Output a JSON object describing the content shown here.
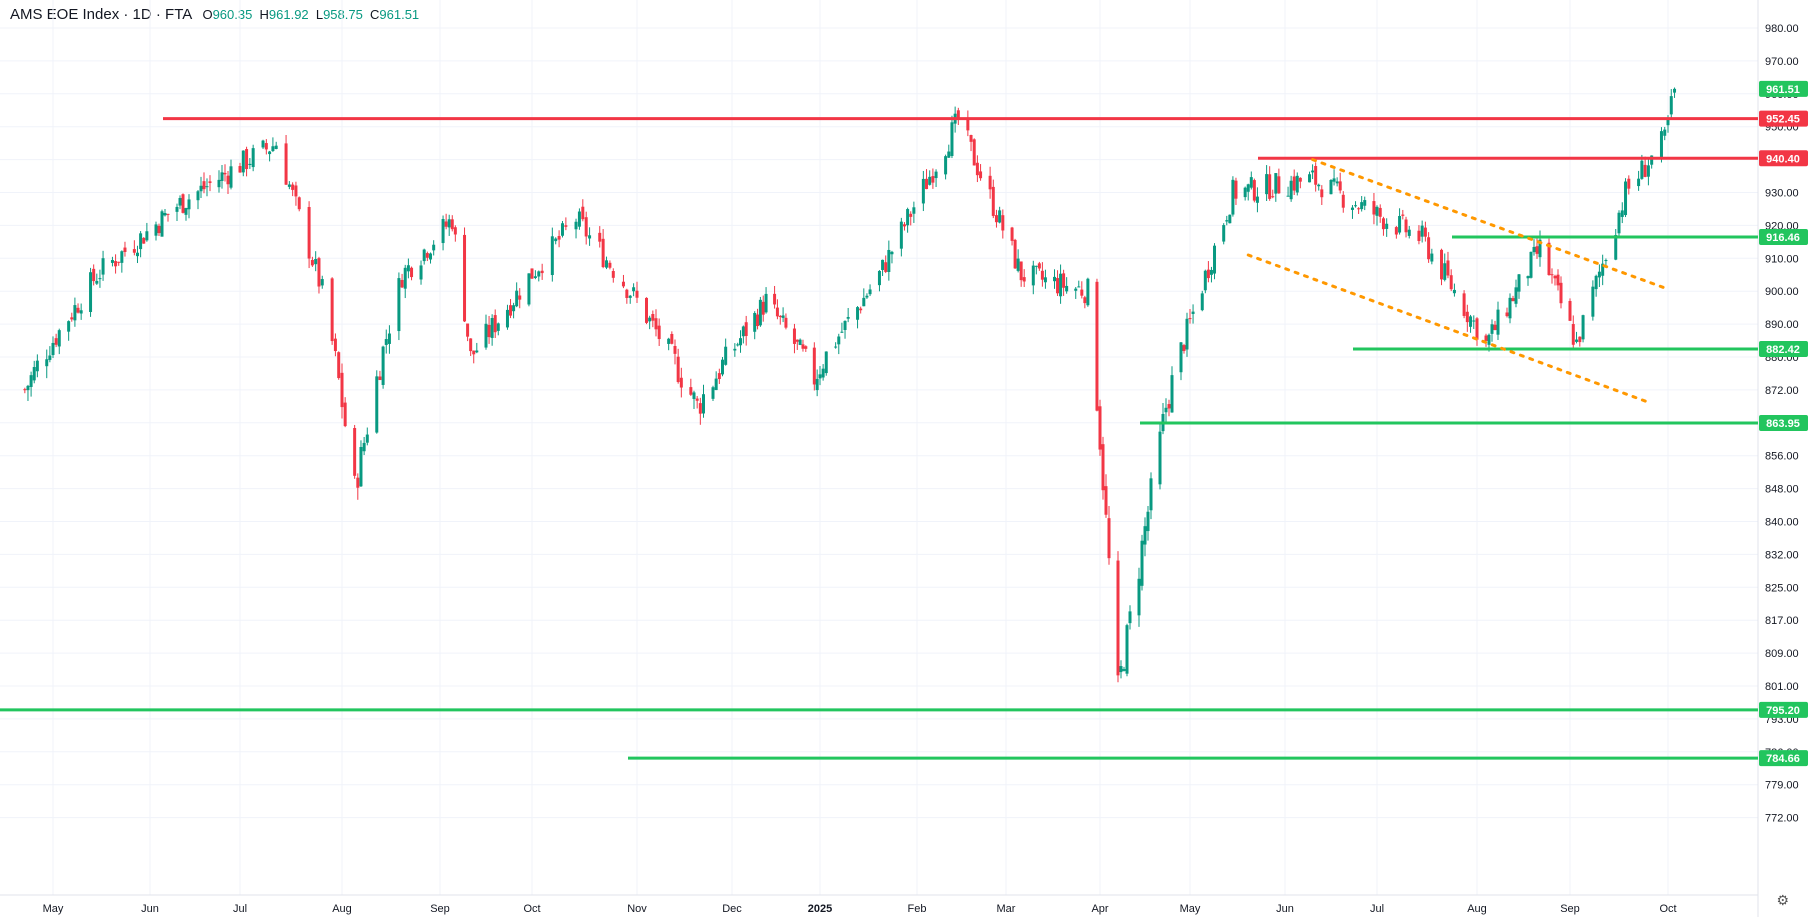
{
  "legend": {
    "symbol": "AMS EOE Index · 1D · FTA",
    "o_label": "O",
    "o_value": "960.35",
    "h_label": "H",
    "h_value": "961.92",
    "l_label": "L",
    "l_value": "958.75",
    "c_label": "C",
    "c_value": "961.51"
  },
  "colors": {
    "up": "#089981",
    "down": "#f23645",
    "resistance": "#f23645",
    "support": "#22c55e",
    "trend": "#ff9800",
    "last": "#22c55e"
  },
  "settings_icon": "gear-icon",
  "chart_data": {
    "type": "candlestick",
    "title": "AMS EOE Index · 1D · FTA",
    "y_tick_labels": [
      "980.00",
      "970.00",
      "960.00",
      "950.00",
      "940.00",
      "930.00",
      "920.00",
      "910.00",
      "900.00",
      "890.00",
      "880.00",
      "872.00",
      "864.00",
      "856.00",
      "848.00",
      "840.00",
      "832.00",
      "825.00",
      "817.00",
      "809.00",
      "801.00",
      "793.00",
      "786.00",
      "779.00",
      "772.00"
    ],
    "x_tick_labels": [
      "May",
      "Jun",
      "Jul",
      "Aug",
      "Sep",
      "Oct",
      "Nov",
      "Dec",
      "2025",
      "Feb",
      "Mar",
      "Apr",
      "May",
      "Jun",
      "Jul",
      "Aug",
      "Sep",
      "Oct"
    ],
    "last_price": "961.51",
    "horizontal_levels": [
      {
        "label": "952.45",
        "value": 952.45,
        "kind": "resistance"
      },
      {
        "label": "940.40",
        "value": 940.4,
        "kind": "resistance"
      },
      {
        "label": "916.46",
        "value": 916.46,
        "kind": "support"
      },
      {
        "label": "882.42",
        "value": 882.42,
        "kind": "support"
      },
      {
        "label": "863.95",
        "value": 863.95,
        "kind": "support"
      },
      {
        "label": "795.20",
        "value": 795.2,
        "kind": "support"
      },
      {
        "label": "784.66",
        "value": 784.66,
        "kind": "support"
      }
    ],
    "trendlines": [
      {
        "from": [
          "2025-06-10",
          940
        ],
        "to": [
          "2025-09-30",
          901
        ]
      },
      {
        "from": [
          "2025-05-20",
          911
        ],
        "to": [
          "2025-09-25",
          869
        ]
      }
    ],
    "closes_approx": [
      {
        "date": "2024-04-22",
        "close": 872
      },
      {
        "date": "2024-05-15",
        "close": 905
      },
      {
        "date": "2024-06-10",
        "close": 926
      },
      {
        "date": "2024-07-12",
        "close": 945
      },
      {
        "date": "2024-07-26",
        "close": 900
      },
      {
        "date": "2024-08-05",
        "close": 848
      },
      {
        "date": "2024-08-20",
        "close": 905
      },
      {
        "date": "2024-09-05",
        "close": 922
      },
      {
        "date": "2024-09-11",
        "close": 880
      },
      {
        "date": "2024-10-14",
        "close": 922
      },
      {
        "date": "2024-10-30",
        "close": 900
      },
      {
        "date": "2024-11-20",
        "close": 868
      },
      {
        "date": "2024-12-13",
        "close": 897
      },
      {
        "date": "2024-12-30",
        "close": 875
      },
      {
        "date": "2025-01-20",
        "close": 905
      },
      {
        "date": "2025-02-14",
        "close": 952
      },
      {
        "date": "2025-03-06",
        "close": 905
      },
      {
        "date": "2025-03-28",
        "close": 900
      },
      {
        "date": "2025-04-07",
        "close": 800
      },
      {
        "date": "2025-04-23",
        "close": 868
      },
      {
        "date": "2025-05-15",
        "close": 930
      },
      {
        "date": "2025-06-10",
        "close": 934
      },
      {
        "date": "2025-07-15",
        "close": 916
      },
      {
        "date": "2025-08-04",
        "close": 884
      },
      {
        "date": "2025-08-22",
        "close": 913
      },
      {
        "date": "2025-09-03",
        "close": 884
      },
      {
        "date": "2025-09-18",
        "close": 930
      },
      {
        "date": "2025-09-30",
        "close": 946
      },
      {
        "date": "2025-10-03",
        "close": 961.51
      }
    ]
  }
}
